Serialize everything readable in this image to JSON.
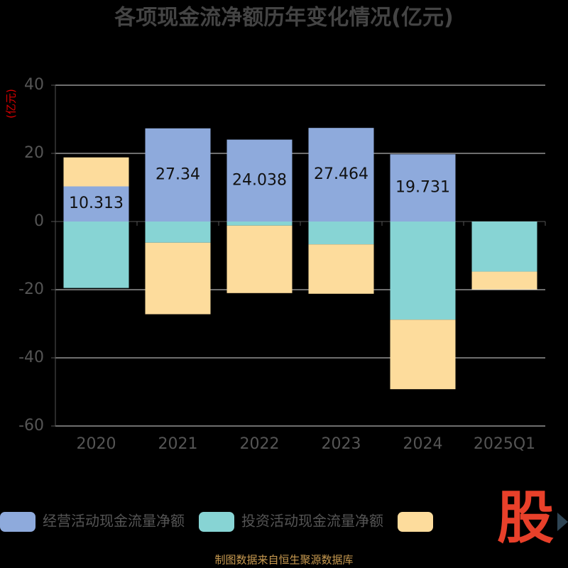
{
  "chart_data": {
    "type": "stacked_bar",
    "title": "各项现金流净额历年变化情况(亿元)",
    "y_label": "(亿元)",
    "categories": [
      "2020",
      "2021",
      "2022",
      "2023",
      "2024",
      "2025Q1"
    ],
    "series": [
      {
        "name": "经营活动现金流量净额",
        "color": "#8eaadc",
        "values": [
          10.313,
          27.34,
          24.038,
          27.464,
          19.731,
          null
        ],
        "show_labels": true
      },
      {
        "name": "投资活动现金流量净额",
        "color": "#87d4d4",
        "values": [
          -19.5,
          -6.2,
          -1.2,
          -6.7,
          -28.8,
          -14.7
        ]
      },
      {
        "color": "#fddc9c",
        "values": [
          8.5,
          -21.0,
          -19.8,
          -14.5,
          -20.4,
          -5.2
        ]
      }
    ],
    "ylim": [
      -60,
      40
    ],
    "yticks": [
      -60,
      -40,
      -20,
      0,
      20,
      40
    ],
    "grid": true,
    "watermark": "股",
    "source": "制图数据来自恒生聚源数据库"
  }
}
